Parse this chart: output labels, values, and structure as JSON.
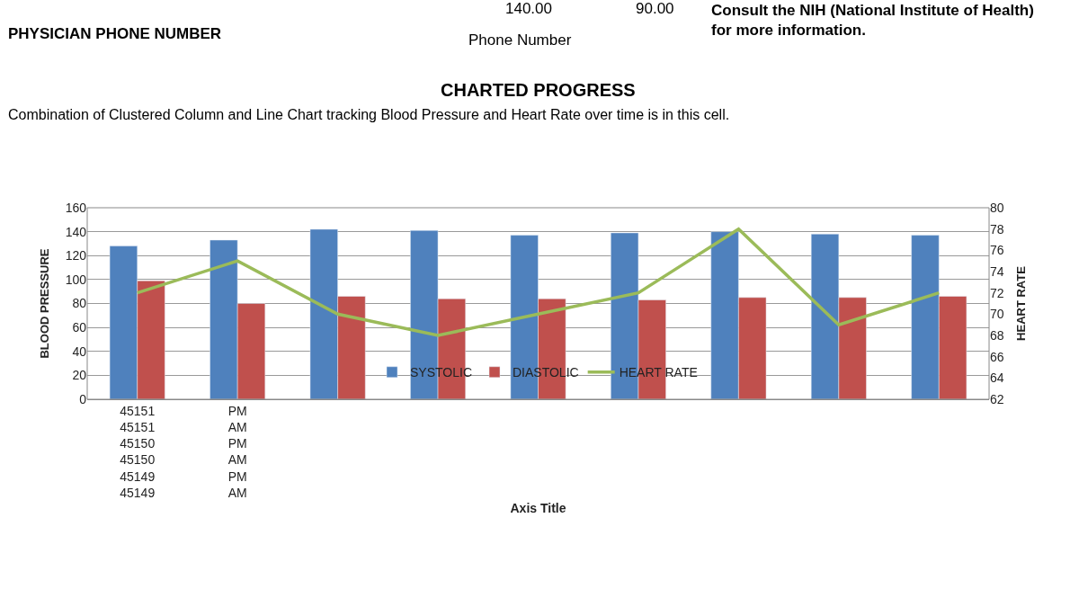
{
  "chart_data": {
    "type": "bar",
    "title": "CHARTED PROGRESS",
    "subtitle": "Combination of Clustered Column and Line Chart tracking Blood Pressure and Heart Rate over time is in this cell.",
    "xlabel": "Axis Title",
    "ylabel": "BLOOD PRESSURE",
    "y2label": "HEART RATE",
    "categories": [
      "45151\n45151\n45150\n45150\n45149\n45149",
      "PM\nAM\nPM\nAM\nPM\nAM",
      null,
      null,
      null,
      null,
      null,
      null,
      null
    ],
    "series": [
      {
        "name": "SYSTOLIC",
        "color": "#4f81bd",
        "values": [
          128,
          133,
          142,
          141,
          137,
          139,
          140,
          138,
          137
        ]
      },
      {
        "name": "DIASTOLIC",
        "color": "#c0504d",
        "values": [
          99,
          80,
          86,
          84,
          84,
          83,
          85,
          85,
          86
        ]
      },
      {
        "name": "HEART RATE",
        "type": "line",
        "axis": "y2",
        "color": "#9bbb59",
        "values": [
          72,
          75,
          70,
          68,
          70,
          72,
          78,
          69,
          72
        ]
      }
    ],
    "ylim": [
      0,
      160
    ],
    "yticks": [
      0,
      20,
      40,
      60,
      80,
      100,
      120,
      140,
      160
    ],
    "y2lim": [
      62,
      80
    ],
    "y2ticks": [
      62,
      64,
      66,
      68,
      70,
      72,
      74,
      76,
      78,
      80
    ],
    "grid": "y",
    "legend": "bottom",
    "marker": "none",
    "annotations": [
      "140.00",
      "90.00",
      "PHYSICIAN PHONE NUMBER",
      "Phone Number",
      "Consult the NIH (National Institute of Health)\nfor more information."
    ]
  }
}
